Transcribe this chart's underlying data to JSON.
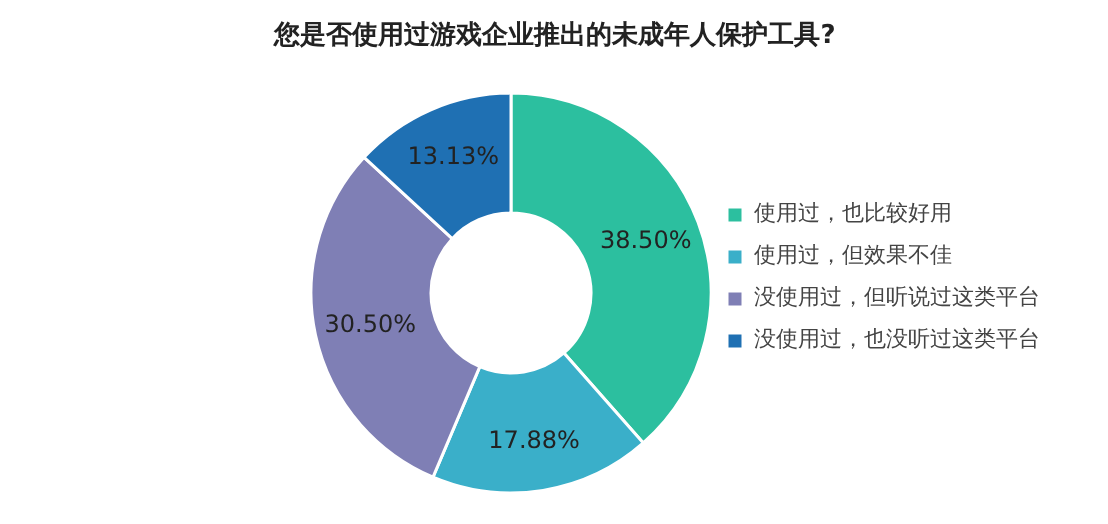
{
  "chart_data": {
    "type": "donut",
    "title": "您是否使用过游戏企业推出的未成年人保护工具?",
    "categories": [
      "使用过，也比较好用",
      "使用过，但效果不佳",
      "没使用过，但听说过这类平台",
      "没使用过，也没听过这类平台"
    ],
    "values": [
      38.5,
      17.88,
      30.5,
      13.13
    ],
    "value_labels": [
      "38.50%",
      "17.88%",
      "30.50%",
      "13.13%"
    ],
    "colors": [
      "#2cbf9f",
      "#3aafc9",
      "#7f7fb5",
      "#1f70b3"
    ],
    "legend": "right"
  }
}
